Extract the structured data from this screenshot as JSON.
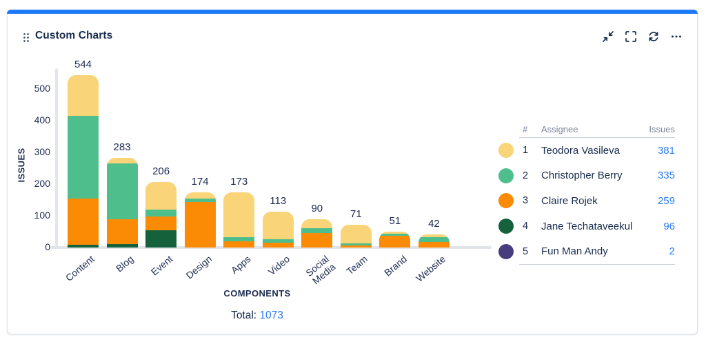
{
  "colors": {
    "accent_bar": "#1d7afc",
    "navy": "#172b4d",
    "chart_text": "#1d2b53",
    "link_blue": "#2b7bf3",
    "header_gray": "#7a869a"
  },
  "header": {
    "title": "Custom Charts",
    "icons": [
      {
        "name": "collapse-icon"
      },
      {
        "name": "fullscreen-icon"
      },
      {
        "name": "refresh-icon"
      },
      {
        "name": "more-icon"
      }
    ]
  },
  "chart_data": {
    "type": "bar",
    "stacked": true,
    "title": "",
    "xlabel": "COMPONENTS",
    "ylabel": "ISSUES",
    "ylim": [
      0,
      550
    ],
    "yticks": [
      0,
      100,
      200,
      300,
      400,
      500
    ],
    "grid": false,
    "categories": [
      "Content",
      "Blog",
      "Event",
      "Design",
      "Apps",
      "Video",
      "Social\nMedia",
      "Team",
      "Brand",
      "Website"
    ],
    "totals": [
      544,
      283,
      206,
      174,
      173,
      113,
      90,
      71,
      51,
      42
    ],
    "series": [
      {
        "name": "Jane Techataveekul",
        "color": "#14613c",
        "values": [
          8,
          10,
          54,
          0,
          0,
          0,
          0,
          0,
          0,
          0
        ]
      },
      {
        "name": "Claire Rojek",
        "color": "#fb8b04",
        "values": [
          146,
          79,
          44,
          143,
          20,
          15,
          46,
          7,
          36,
          17
        ]
      },
      {
        "name": "Christopher Berry",
        "color": "#4fbe8d",
        "values": [
          261,
          176,
          21,
          11,
          13,
          11,
          15,
          6,
          7,
          16
        ]
      },
      {
        "name": "Teodora Vasileva",
        "color": "#f9d478",
        "values": [
          129,
          18,
          87,
          20,
          140,
          87,
          29,
          58,
          8,
          9
        ]
      }
    ],
    "total_label": "Total:",
    "total_value": "1073"
  },
  "legend": {
    "headers": [
      "#",
      "Assignee",
      "Issues"
    ],
    "rows": [
      {
        "rank": "1",
        "name": "Teodora Vasileva",
        "issues": "381",
        "color": "#f9d478"
      },
      {
        "rank": "2",
        "name": "Christopher Berry",
        "issues": "335",
        "color": "#4fbe8d"
      },
      {
        "rank": "3",
        "name": "Claire Rojek",
        "issues": "259",
        "color": "#fb8b04"
      },
      {
        "rank": "4",
        "name": "Jane Techataveekul",
        "issues": "96",
        "color": "#14613c"
      },
      {
        "rank": "5",
        "name": "Fun Man Andy",
        "issues": "2",
        "color": "#463c7e"
      }
    ]
  }
}
